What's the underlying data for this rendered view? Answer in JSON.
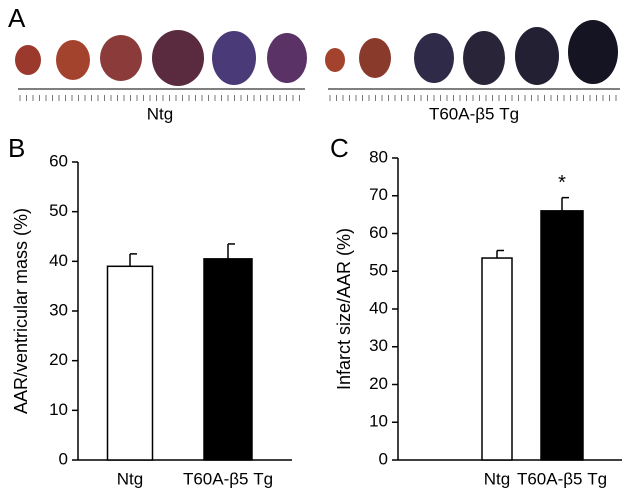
{
  "photo_panel": {
    "panel": "A",
    "groups": [
      "Ntg",
      "T60A-β5 Tg"
    ]
  },
  "chart_data": [
    {
      "type": "bar",
      "panel": "B",
      "ylabel": "AAR/ventricular mass (%)",
      "categories": [
        "Ntg",
        "T60A-β5 Tg"
      ],
      "values": [
        39,
        40.5
      ],
      "errors": [
        2.5,
        3
      ],
      "colors": [
        "#ffffff",
        "#000000"
      ],
      "ylim": [
        0,
        60
      ],
      "yticks": [
        0,
        10,
        20,
        30,
        40,
        50,
        60
      ]
    },
    {
      "type": "bar",
      "panel": "C",
      "ylabel": "Infarct size/AAR (%)",
      "categories": [
        "Ntg",
        "T60A-β5 Tg"
      ],
      "values": [
        53.5,
        66
      ],
      "errors": [
        2,
        3.5
      ],
      "colors": [
        "#ffffff",
        "#000000"
      ],
      "ylim": [
        0,
        80
      ],
      "yticks": [
        0,
        10,
        20,
        30,
        40,
        50,
        60,
        70,
        80
      ],
      "annotations": [
        "",
        "*"
      ]
    }
  ]
}
